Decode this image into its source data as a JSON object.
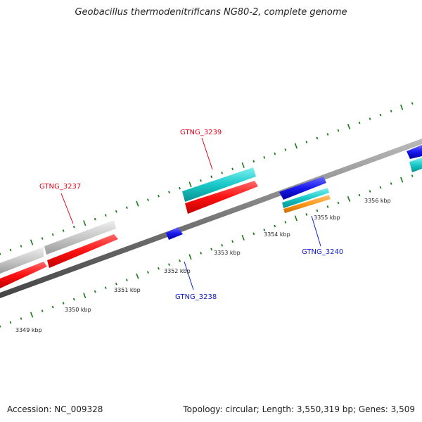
{
  "title": "Geobacillus thermodenitrificans NG80-2, complete genome",
  "footer": {
    "accession": "Accession: NC_009328",
    "summary": "Topology: circular; Length: 3,550,319 bp; Genes: 3,509"
  },
  "scale_labels": [
    "3349 kbp",
    "3350 kbp",
    "3351 kbp",
    "3352 kbp",
    "3353 kbp",
    "3354 kbp",
    "3355 kbp",
    "3356 kbp"
  ],
  "gene_labels": [
    {
      "text": "GTNG_3237",
      "color": "#e8001c"
    },
    {
      "text": "GTNG_3239",
      "color": "#e8001c"
    },
    {
      "text": "GTNG_3238",
      "color": "#1020c8"
    },
    {
      "text": "GTNG_3240",
      "color": "#1020c8"
    }
  ],
  "colors": {
    "red": "#ff1a1a",
    "cyan": "#22cccc",
    "grey": "#c8c8c8",
    "blue": "#1a1aee",
    "orange": "#ff9a1a",
    "tick": "#1a7a1a"
  }
}
